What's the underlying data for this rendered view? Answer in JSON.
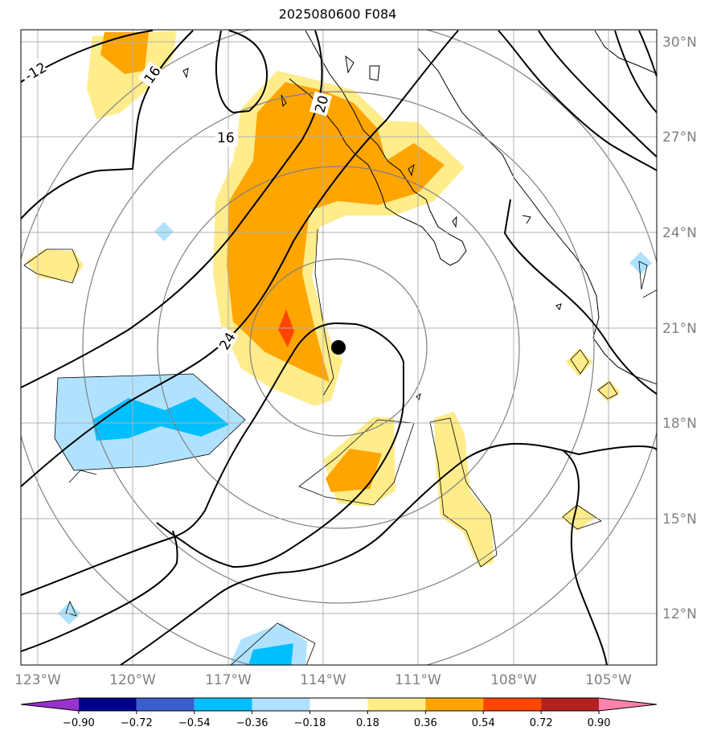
{
  "title": "2025080600 F084",
  "latitude_labels": [
    "30°N",
    "27°N",
    "24°N",
    "21°N",
    "18°N",
    "15°N",
    "12°N"
  ],
  "longitude_labels": [
    "123°W",
    "120°W",
    "117°W",
    "114°W",
    "111°W",
    "108°W",
    "105°W"
  ],
  "contour_labels": [
    "-12",
    "16",
    "16",
    "20",
    "24"
  ],
  "colorbar": {
    "ticks": [
      "−0.90",
      "−0.72",
      "−0.54",
      "−0.36",
      "−0.18",
      "0.18",
      "0.36",
      "0.54",
      "0.72",
      "0.90"
    ],
    "colors": [
      "#9932cc",
      "#00008b",
      "#3a5fcd",
      "#00bfff",
      "#b0e2ff",
      "#ffffff",
      "#ffec8b",
      "#ffa500",
      "#ff4500",
      "#b22222",
      "#ff82ab"
    ]
  },
  "storm_center": {
    "lat": 20.4,
    "lon": -113.5
  },
  "colors": {
    "gridline": "#b0b0b0",
    "range_rings": "#808080",
    "contours": "#000000",
    "storm_marker": "#000000"
  }
}
